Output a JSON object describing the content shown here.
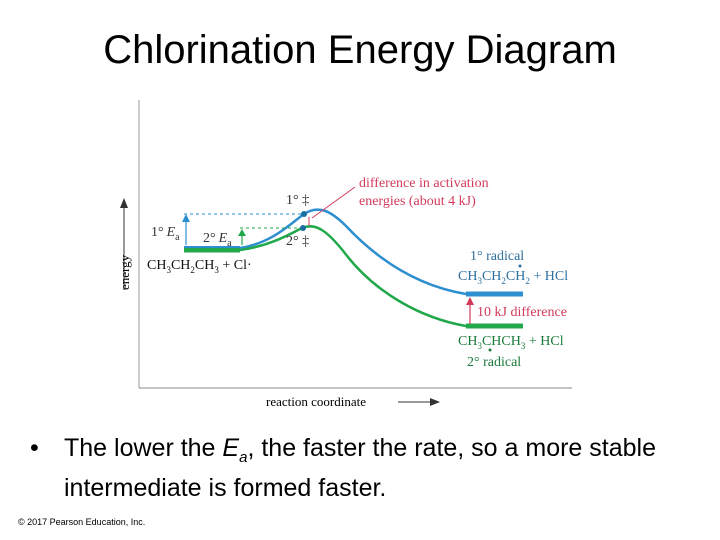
{
  "slide": {
    "title": "Chlorination Energy Diagram",
    "bullet_symbol": "•",
    "bullet_text_pre": "The lower the ",
    "bullet_text_ea_E": "E",
    "bullet_text_ea_sub": "a",
    "bullet_text_post_line1": ", the faster the rate, so a more stable",
    "bullet_text_line2": "intermediate is formed faster.",
    "copyright": "© 2017 Pearson Education, Inc."
  },
  "diagram": {
    "y_axis_label": "energy",
    "x_axis_label": "reaction coordinate",
    "reactant_label_parts": [
      "CH",
      "3",
      "CH",
      "2",
      "CH",
      "3",
      " + Cl·"
    ],
    "ts_primary_label": "1° ‡",
    "ts_secondary_label": "2° ‡",
    "ea_primary": {
      "prefix": "1°",
      "E": "E",
      "sub": "a"
    },
    "ea_secondary": {
      "prefix": "2°",
      "E": "E",
      "sub": "a"
    },
    "annotation_line1": "difference in activation",
    "annotation_line2": "energies (about 4 kJ)",
    "primary_radical_title": "1° radical",
    "primary_product_parts": [
      "CH",
      "3",
      "CH",
      "2",
      "CH",
      "2",
      " + HCl"
    ],
    "difference_label": "10 kJ difference",
    "secondary_product_parts": [
      "CH",
      "3",
      "CHCH",
      "3",
      " + HCl"
    ],
    "secondary_radical_title": "2° radical",
    "colors": {
      "primary_curve": "#2e8fd0",
      "secondary_curve": "#20a84a",
      "annotation": "#d23a5a",
      "axis": "#333333",
      "dashed": "#2e8fd0"
    }
  }
}
